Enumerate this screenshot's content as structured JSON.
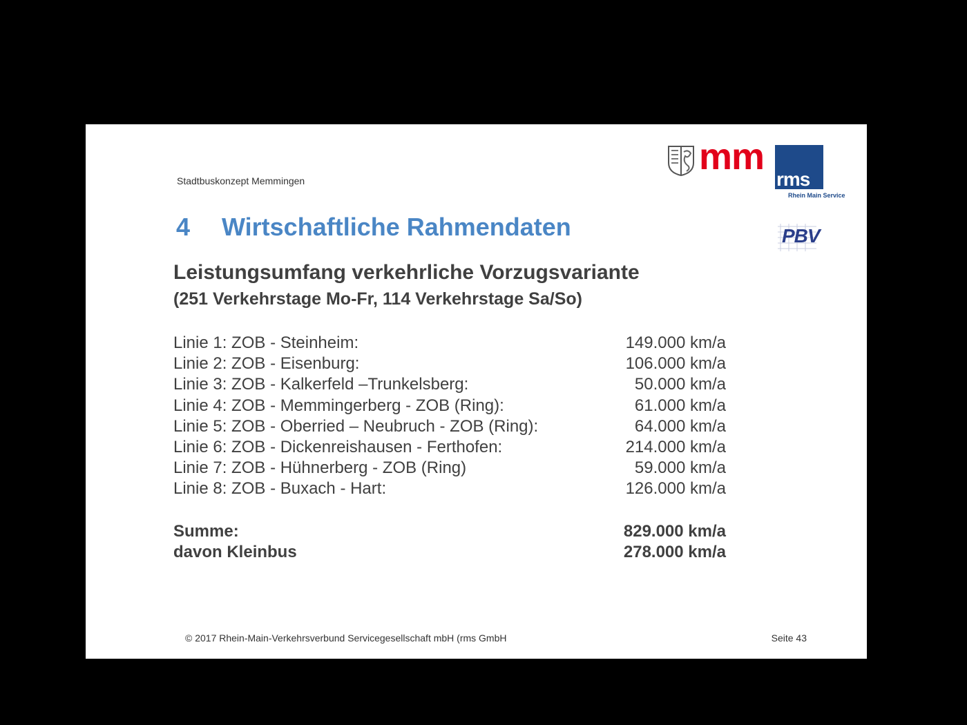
{
  "slide": {
    "header": "Stadtbuskonzept Memmingen",
    "logos": {
      "mm_text": "mm",
      "rms_text": "rms",
      "rms_subtitle": "Rhein Main Service",
      "pbv_text": "PBV",
      "mm_color": "#e2001a",
      "rms_color": "#1e4a8a",
      "pbv_color": "#2a3e8a"
    },
    "title_number": "4",
    "title_text": "Wirtschaftliche Rahmendaten",
    "title_color": "#4a86c5",
    "subtitle_line1": "Leistungsumfang verkehrliche Vorzugsvariante",
    "subtitle_line2": "(251 Verkehrstage Mo-Fr, 114 Verkehrstage Sa/So)",
    "lines": [
      {
        "label": "Linie 1: ZOB - Steinheim:",
        "value": "149.000 km/a"
      },
      {
        "label": "Linie 2: ZOB - Eisenburg:",
        "value": "106.000 km/a"
      },
      {
        "label": "Linie 3: ZOB - Kalkerfeld –Trunkelsberg:",
        "value": "50.000 km/a"
      },
      {
        "label": "Linie 4: ZOB - Memmingerberg - ZOB (Ring):",
        "value": "61.000 km/a"
      },
      {
        "label": "Linie 5: ZOB - Oberried – Neubruch - ZOB (Ring):",
        "value": "64.000 km/a"
      },
      {
        "label": "Linie 6: ZOB - Dickenreishausen - Ferthofen:",
        "value": "214.000 km/a"
      },
      {
        "label": "Linie 7: ZOB - Hühnerberg - ZOB (Ring)",
        "value": "59.000 km/a"
      },
      {
        "label": "Linie 8: ZOB - Buxach - Hart:",
        "value": "126.000 km/a"
      }
    ],
    "sum": {
      "label": "Summe:",
      "value": "829.000 km/a"
    },
    "kleinbus": {
      "label": "davon Kleinbus",
      "value": "278.000 km/a"
    },
    "footer": "© 2017  Rhein-Main-Verkehrsverbund Servicegesellschaft mbH (rms GmbH",
    "page": "Seite 43"
  }
}
